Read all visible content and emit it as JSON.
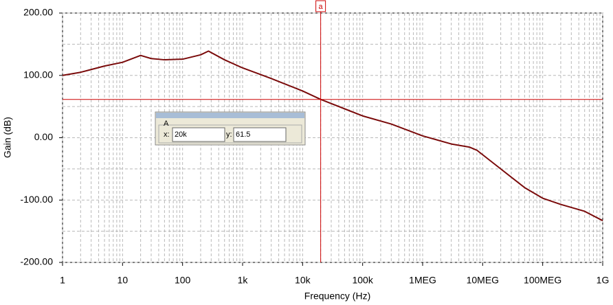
{
  "chart_data": {
    "type": "line",
    "xlabel": "Frequency (Hz)",
    "ylabel": "Gain (dB)",
    "xscale": "log",
    "grid": true,
    "minor_grid": true,
    "xlim": [
      1,
      1000000000
    ],
    "ylim": [
      -200,
      200
    ],
    "xticks": [
      1,
      10,
      100,
      {
        "value": 1000,
        "label": "1k"
      },
      {
        "value": 10000,
        "label": "10k"
      },
      {
        "value": 100000,
        "label": "100k"
      },
      {
        "value": 1000000,
        "label": "1MEG"
      },
      {
        "value": 10000000,
        "label": "10MEG"
      },
      {
        "value": 100000000,
        "label": "100MEG"
      },
      {
        "value": 1000000000,
        "label": "1G"
      }
    ],
    "yticks": [
      {
        "value": -200,
        "label": "-200.00"
      },
      {
        "value": -100,
        "label": "-100.00"
      },
      {
        "value": 0,
        "label": "0.00"
      },
      {
        "value": 100,
        "label": "100.00"
      },
      {
        "value": 200,
        "label": "200.00"
      }
    ],
    "series": [
      {
        "color": "#7a0a0a",
        "x": [
          1,
          2,
          5,
          10,
          20,
          30,
          50,
          100,
          200,
          270,
          500,
          1000,
          3000,
          10000,
          20000,
          100000,
          300000,
          1000000,
          3000000,
          6000000,
          8000000,
          20000000,
          50000000,
          100000000,
          200000000,
          500000000,
          1000000000
        ],
        "values": [
          100,
          105,
          115,
          121,
          132,
          127,
          125,
          126,
          133,
          139,
          125,
          112,
          95,
          75,
          61.5,
          35,
          22,
          3,
          -10,
          -15,
          -20,
          -50,
          -80,
          -97,
          -107,
          -118,
          -133
        ]
      }
    ],
    "cursor": {
      "label": "a",
      "color": "#cc0000",
      "x": 20000,
      "y": 61.5,
      "box_title": "A",
      "x_label": "x:",
      "x_text": "20k",
      "y_label": "y:",
      "y_text": "61.5"
    }
  }
}
